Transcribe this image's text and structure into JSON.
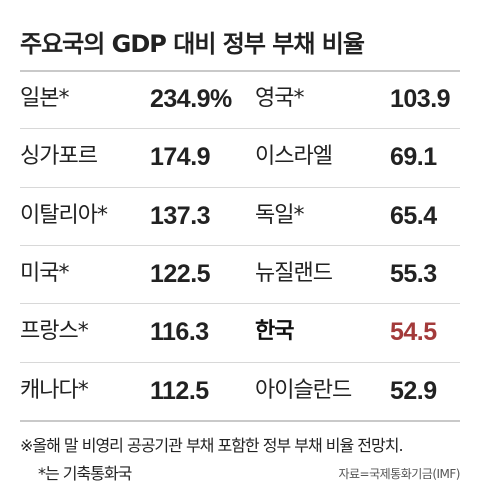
{
  "title": "주요국의 GDP 대비 정부 부채 비율",
  "footnote": "※올해 말 비영리 공공기관 부채 포함한 정부 부채 비율 전망치.",
  "footnote2": "*는 기축통화국",
  "source": "자료=국제통화기금(IMF)",
  "colors": {
    "highlight": "#a33a3a",
    "text": "#222222",
    "rule": "#d8d8d8"
  },
  "chart_data": {
    "type": "table",
    "title": "주요국의 GDP 대비 정부 부채 비율",
    "categories": [
      "일본*",
      "싱가포르",
      "이탈리아*",
      "미국*",
      "프랑스*",
      "캐나다*",
      "영국*",
      "이스라엘",
      "독일*",
      "뉴질랜드",
      "한국",
      "아이슬란드"
    ],
    "values": [
      234.9,
      174.9,
      137.3,
      122.5,
      116.3,
      112.5,
      103.9,
      69.1,
      65.4,
      55.3,
      54.5,
      52.9
    ],
    "value_labels": [
      "234.9%",
      "174.9",
      "137.3",
      "122.5",
      "116.3",
      "112.5",
      "103.9",
      "69.1",
      "65.4",
      "55.3",
      "54.5",
      "52.9"
    ],
    "highlight": "한국"
  }
}
